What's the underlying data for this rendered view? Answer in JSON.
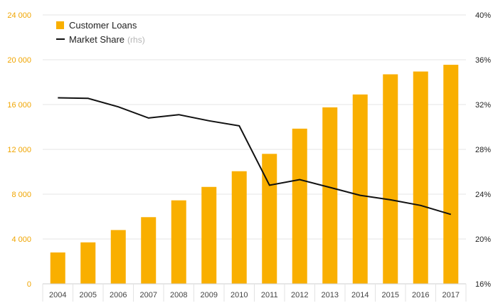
{
  "colors": {
    "bar": "#F9AF00",
    "line": "#111111",
    "left_axis_text": "#F0A500",
    "grid": "#e6e6e6"
  },
  "legend": {
    "position": "top-left",
    "loans_label": "Customer Loans",
    "share_label": "Market Share",
    "share_note": "(rhs)"
  },
  "chart_data": {
    "type": "bar",
    "categories": [
      "2004",
      "2005",
      "2006",
      "2007",
      "2008",
      "2009",
      "2010",
      "2011",
      "2012",
      "2013",
      "2014",
      "2015",
      "2016",
      "2017"
    ],
    "series": [
      {
        "name": "Customer Loans",
        "type": "bar",
        "axis": "left",
        "values": [
          2800,
          3700,
          4800,
          5950,
          7450,
          8650,
          10050,
          11600,
          13850,
          15750,
          16900,
          18700,
          18950,
          19550
        ]
      },
      {
        "name": "Market Share",
        "type": "line",
        "axis": "right",
        "values": [
          32.6,
          32.55,
          31.8,
          30.8,
          31.1,
          30.55,
          30.1,
          24.8,
          25.3,
          24.6,
          23.9,
          23.5,
          23.0,
          22.2
        ]
      }
    ],
    "y_left": {
      "lim": [
        0,
        24000
      ],
      "ticks": [
        0,
        4000,
        8000,
        12000,
        16000,
        20000,
        24000
      ],
      "tick_labels": [
        "0",
        "4 000",
        "8 000",
        "12 000",
        "16 000",
        "20 000",
        "24 000"
      ]
    },
    "y_right": {
      "lim": [
        16,
        40
      ],
      "ticks": [
        16,
        20,
        24,
        28,
        32,
        36,
        40
      ],
      "tick_labels": [
        "16%",
        "20%",
        "24%",
        "28%",
        "32%",
        "36%",
        "40%"
      ]
    },
    "grid": true
  }
}
